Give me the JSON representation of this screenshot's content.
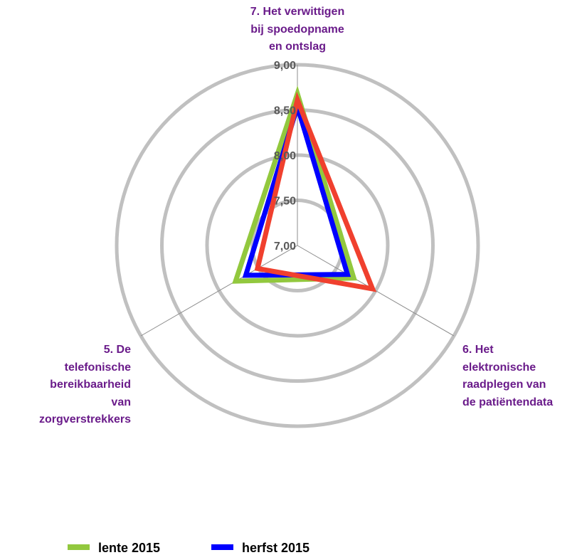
{
  "chart_data": {
    "type": "radar",
    "categories": [
      "7. Het verwittigen\nbij spoedopname\nen ontslag",
      "6. Het\nelektronische\nraadplegen van\nde patiëntendata",
      "5. De\ntelefonische\nbereikbaarheid\nvan\nzorgverstrekkers"
    ],
    "series": [
      {
        "name": "lente 2015",
        "color": "#92c83e",
        "values": [
          8.68,
          7.72,
          7.79
        ]
      },
      {
        "name": "herfst 2015",
        "color": "#0000ff",
        "values": [
          8.54,
          7.64,
          7.66
        ]
      },
      {
        "color": "#f0402e",
        "values": [
          8.61,
          7.96,
          7.51
        ]
      }
    ],
    "ylim": [
      7,
      9
    ],
    "yticks": [
      {
        "value": 7,
        "label": "7,00"
      },
      {
        "value": 7.5,
        "label": "7,50"
      },
      {
        "value": 8,
        "label": "8,00"
      },
      {
        "value": 8.5,
        "label": "8,50"
      },
      {
        "value": 9,
        "label": "9,00"
      }
    ],
    "grid": true,
    "legend": "bottom"
  }
}
